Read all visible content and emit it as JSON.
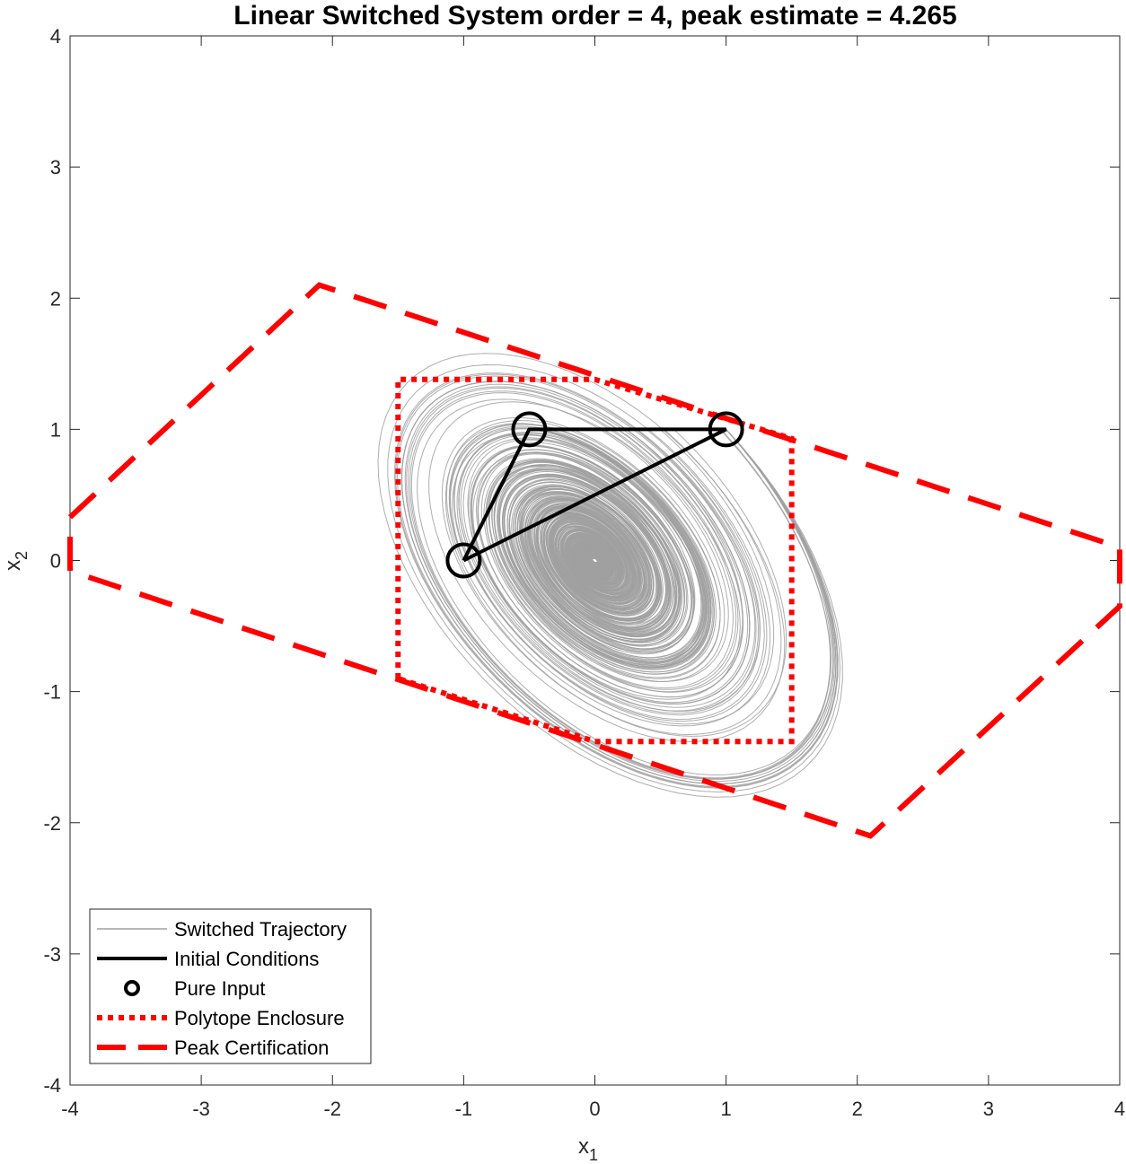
{
  "chart_data": {
    "type": "line",
    "title": "Linear Switched System order = 4, peak estimate = 4.265",
    "xlabel": "x",
    "xlabel_sub": "1",
    "ylabel": "x",
    "ylabel_sub": "2",
    "xlim": [
      -4,
      4
    ],
    "ylim": [
      -4,
      4
    ],
    "xticks": [
      -4,
      -3,
      -2,
      -1,
      0,
      1,
      2,
      3,
      4
    ],
    "yticks": [
      -4,
      -3,
      -2,
      -1,
      0,
      1,
      2,
      3,
      4
    ],
    "tick_labels_x": [
      "-4",
      "-3",
      "-2",
      "-1",
      "0",
      "1",
      "2",
      "3",
      "4"
    ],
    "tick_labels_y": [
      "-4",
      "-3",
      "-2",
      "-1",
      "0",
      "1",
      "2",
      "3",
      "4"
    ],
    "grid": false,
    "legend_position": "bottom-left",
    "series": [
      {
        "name": "Switched Trajectory",
        "color": "#a0a0a0",
        "style": "solid",
        "description_kind": "spiral trajectories converging to origin",
        "envelope": [
          [
            -1.0,
            0.0
          ],
          [
            -0.95,
            0.55
          ],
          [
            -0.7,
            0.95
          ],
          [
            -0.3,
            1.0
          ],
          [
            0.4,
            0.95
          ],
          [
            1.0,
            0.85
          ],
          [
            1.35,
            0.5
          ],
          [
            1.45,
            0.0
          ],
          [
            1.3,
            -0.55
          ],
          [
            1.1,
            -1.1
          ],
          [
            0.85,
            -1.4
          ],
          [
            0.5,
            -1.35
          ],
          [
            0.1,
            -1.05
          ],
          [
            -0.3,
            -0.6
          ],
          [
            -0.7,
            -0.25
          ]
        ]
      },
      {
        "name": "Initial Conditions",
        "color": "#000000",
        "style": "solid",
        "x": [
          -1.0,
          -0.5,
          1.0,
          -1.0
        ],
        "y": [
          0.0,
          1.0,
          1.0,
          0.0
        ]
      },
      {
        "name": "Pure Input",
        "color": "#000000",
        "style": "marker-circle",
        "x": [
          -1.0,
          -0.5,
          1.0
        ],
        "y": [
          0.0,
          1.0,
          1.0
        ]
      },
      {
        "name": "Polytope Enclosure",
        "color": "#ff0000",
        "style": "dotted",
        "x": [
          -1.5,
          -1.5,
          0.0,
          1.5,
          1.5,
          0.0,
          -1.5
        ],
        "y": [
          -0.9,
          1.38,
          1.38,
          0.93,
          -1.38,
          -1.38,
          -0.9
        ]
      },
      {
        "name": "Peak Certification",
        "color": "#ff0000",
        "style": "dashed",
        "x": [
          -4.0,
          -2.1,
          4.0,
          4.0,
          2.1,
          -4.0,
          -4.0
        ],
        "y": [
          0.33,
          2.1,
          0.1,
          -0.35,
          -2.1,
          -0.08,
          0.33
        ]
      }
    ]
  }
}
